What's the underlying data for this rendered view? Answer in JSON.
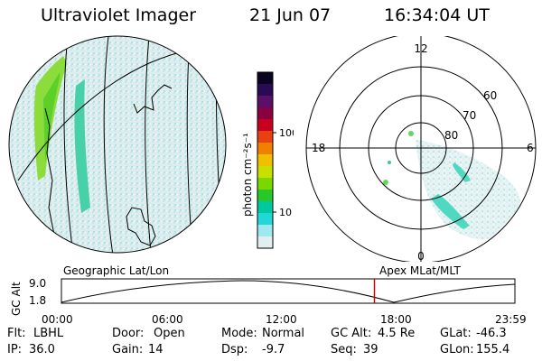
{
  "header": {
    "instrument": "Ultraviolet Imager",
    "date": "21 Jun 07",
    "time": "16:34:04 UT"
  },
  "colorbar": {
    "unit_label": "photon cm⁻²s⁻¹",
    "ticks": [
      "100",
      "10"
    ],
    "colors": [
      "#0a0420",
      "#2a0a55",
      "#5a0f6a",
      "#8a0040",
      "#c80020",
      "#e84010",
      "#f08000",
      "#f0c000",
      "#c8e000",
      "#78d800",
      "#28c828",
      "#00c8a0",
      "#20d8d8",
      "#a0e8f0",
      "#e0f0f0"
    ]
  },
  "polar_plot": {
    "mlt_labels": [
      "12",
      "18",
      "6",
      "0"
    ],
    "lat_labels": [
      "60",
      "70",
      "80"
    ]
  },
  "timeline": {
    "left_label": "Geographic Lat/Lon",
    "right_label": "Apex  MLat/MLT",
    "y_axis_label": "GC Alt",
    "y_ticks": [
      "9.0",
      "1.8"
    ],
    "x_ticks": [
      "00:00",
      "06:00",
      "12:00",
      "18:00",
      "23:59"
    ],
    "current_time_fraction": 0.6903,
    "marker_color": "#d00000"
  },
  "info": {
    "row1": [
      {
        "label": "Flt:",
        "value": "LBHL"
      },
      {
        "label": "Door:",
        "value": "Open"
      },
      {
        "label": "Mode:",
        "value": "Normal"
      },
      {
        "label": "GC Alt:",
        "value": "4.5 Re"
      },
      {
        "label": "GLat:",
        "value": "-46.3"
      }
    ],
    "row2": [
      {
        "label": "IP:",
        "value": "36.0"
      },
      {
        "label": "Gain:",
        "value": "14"
      },
      {
        "label": "Dsp:",
        "value": "-9.7"
      },
      {
        "label": "Seq:",
        "value": "39"
      },
      {
        "label": "GLon:",
        "value": "155.4"
      }
    ]
  }
}
